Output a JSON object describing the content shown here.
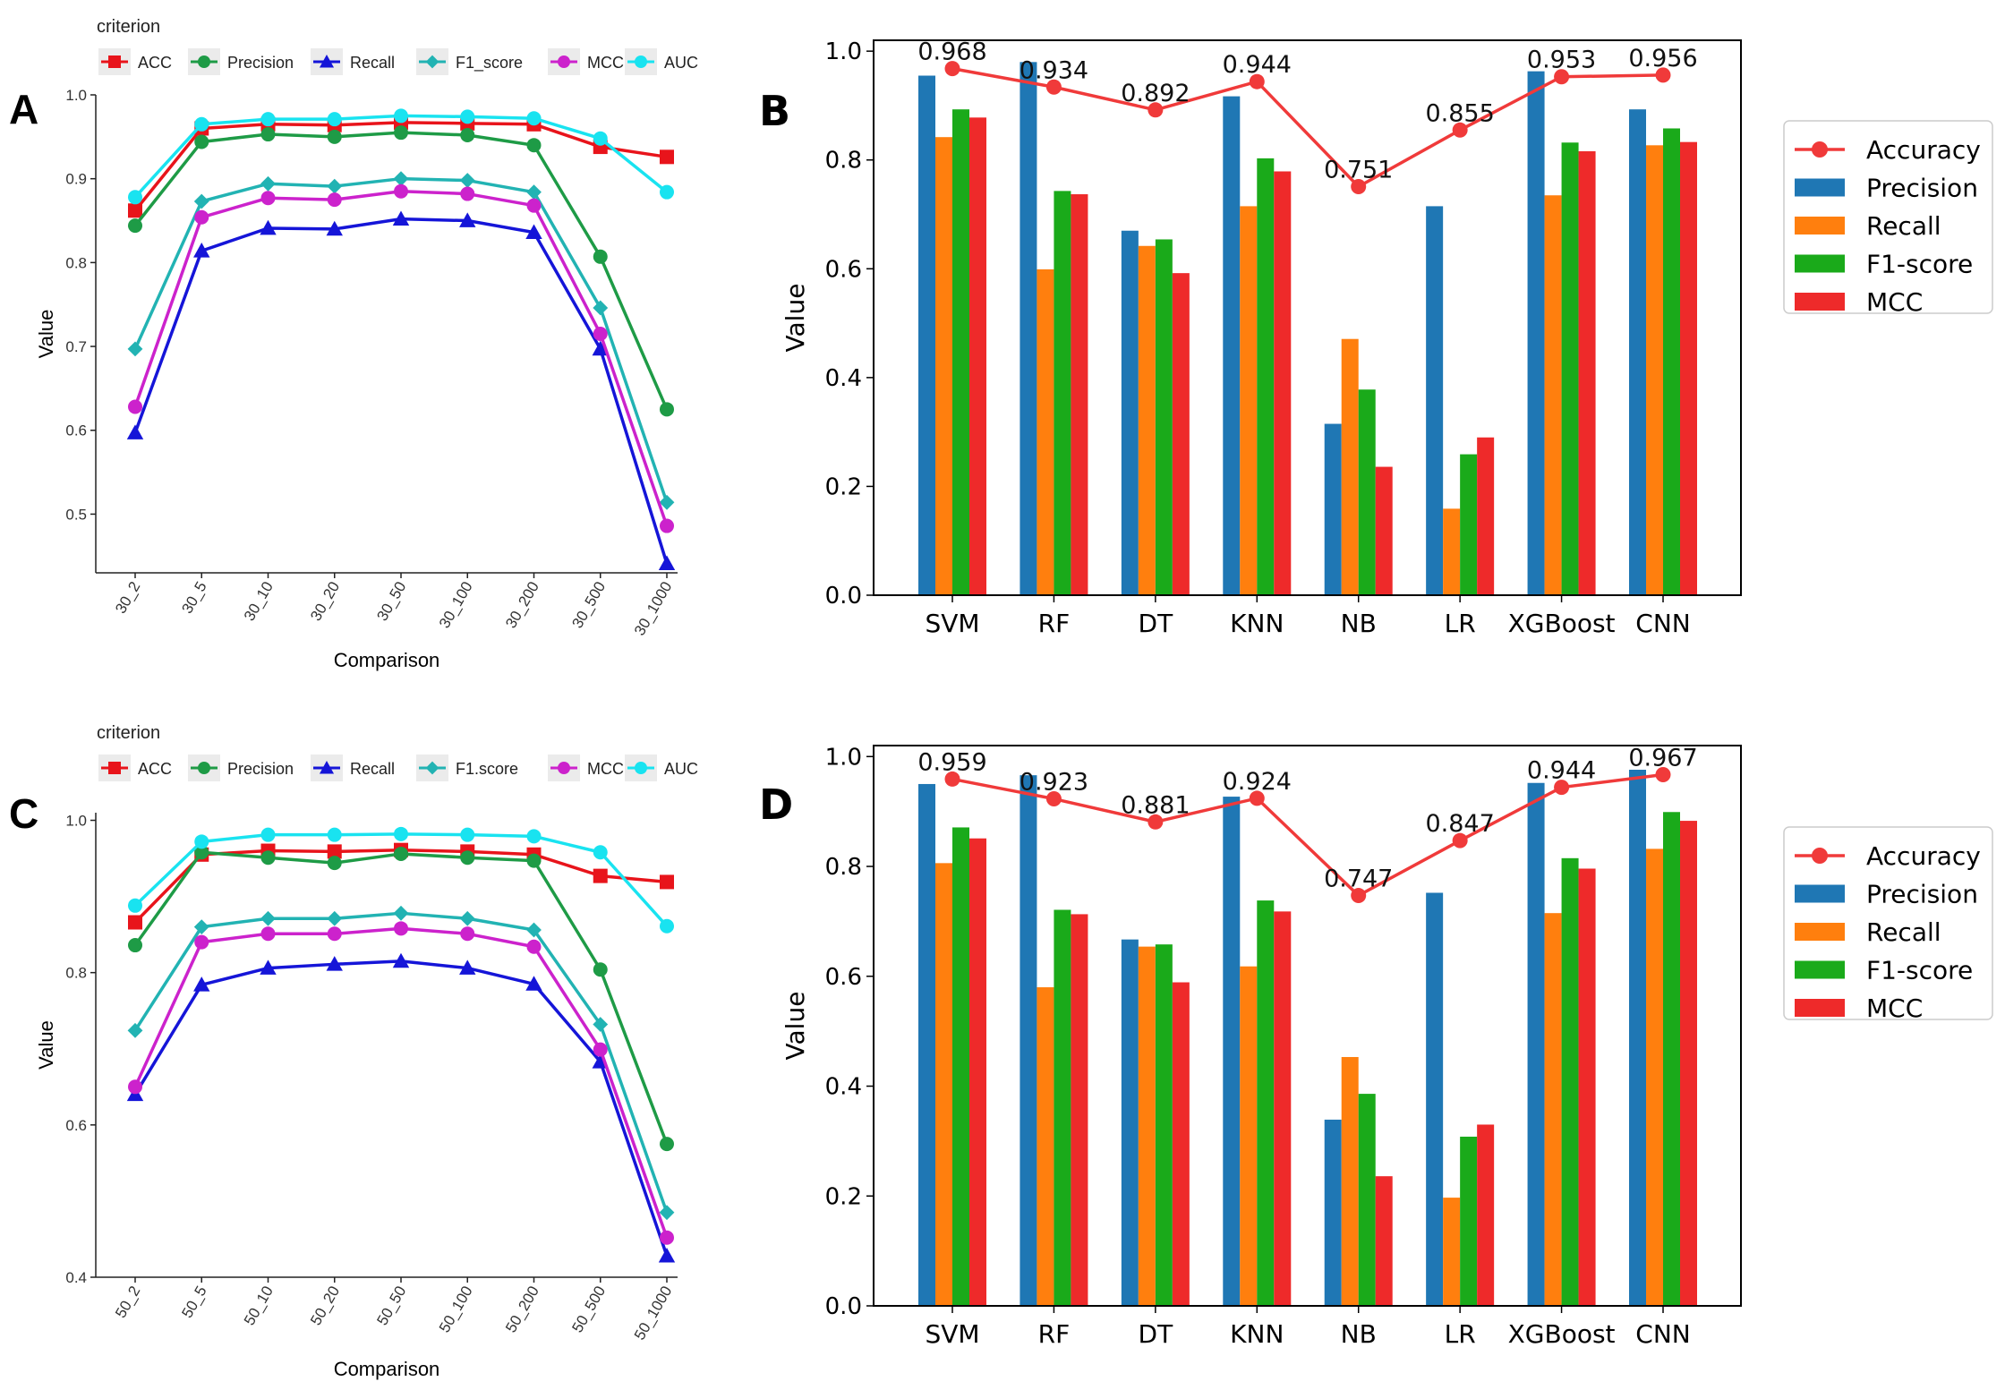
{
  "panels": {
    "A": {
      "letter": "A",
      "chart_data": {
        "type": "line",
        "legend_title": "criterion",
        "xlabel": "Comparison",
        "ylabel": "Value",
        "ylim": [
          0.43,
          1.0
        ],
        "yticks": [
          0.5,
          0.6,
          0.7,
          0.8,
          0.9,
          1.0
        ],
        "ytick_labels": [
          "0.5",
          "0.6",
          "0.7",
          "0.8",
          "0.9",
          "1.0"
        ],
        "categories": [
          "30_2",
          "30_5",
          "30_10",
          "30_20",
          "30_50",
          "30_100",
          "30_200",
          "30_500",
          "30_1000"
        ],
        "series": [
          {
            "name": "ACC",
            "color": "#e8141b",
            "marker": "square",
            "values": [
              0.862,
              0.96,
              0.965,
              0.964,
              0.967,
              0.966,
              0.965,
              0.938,
              0.926
            ]
          },
          {
            "name": "Precision",
            "color": "#1e9b46",
            "marker": "circle",
            "values": [
              0.844,
              0.944,
              0.953,
              0.95,
              0.955,
              0.952,
              0.94,
              0.807,
              0.625
            ]
          },
          {
            "name": "Recall",
            "color": "#1515d8",
            "marker": "triangle",
            "values": [
              0.597,
              0.814,
              0.841,
              0.84,
              0.852,
              0.85,
              0.836,
              0.697,
              0.441
            ]
          },
          {
            "name": "F1_score",
            "color": "#22b3b3",
            "marker": "diamond",
            "values": [
              0.697,
              0.873,
              0.894,
              0.891,
              0.9,
              0.898,
              0.884,
              0.746,
              0.514
            ]
          },
          {
            "name": "MCC",
            "color": "#cc22cc",
            "marker": "circle",
            "values": [
              0.628,
              0.854,
              0.877,
              0.875,
              0.885,
              0.882,
              0.868,
              0.715,
              0.486
            ]
          },
          {
            "name": "AUC",
            "color": "#19e3f0",
            "marker": "circle",
            "values": [
              0.878,
              0.965,
              0.971,
              0.971,
              0.975,
              0.974,
              0.972,
              0.948,
              0.884
            ]
          }
        ]
      }
    },
    "B": {
      "letter": "B",
      "chart_data": {
        "type": "bar",
        "ylabel": "Value",
        "ylim": [
          0.0,
          1.02
        ],
        "yticks": [
          0.0,
          0.2,
          0.4,
          0.6,
          0.8,
          1.0
        ],
        "ytick_labels": [
          "0.0",
          "0.2",
          "0.4",
          "0.6",
          "0.8",
          "1.0"
        ],
        "categories": [
          "SVM",
          "RF",
          "DT",
          "KNN",
          "NB",
          "LR",
          "XGBoost",
          "CNN"
        ],
        "series": [
          {
            "name": "Precision",
            "color": "#1f77b4",
            "values": [
              0.955,
              0.98,
              0.67,
              0.917,
              0.315,
              0.715,
              0.963,
              0.893
            ]
          },
          {
            "name": "Recall",
            "color": "#ff7f0e",
            "values": [
              0.842,
              0.599,
              0.642,
              0.715,
              0.471,
              0.159,
              0.735,
              0.827
            ]
          },
          {
            "name": "F1-score",
            "color": "#1aaa1a",
            "values": [
              0.893,
              0.743,
              0.654,
              0.803,
              0.378,
              0.259,
              0.832,
              0.858
            ]
          },
          {
            "name": "MCC",
            "color": "#ee2a2a",
            "values": [
              0.878,
              0.737,
              0.592,
              0.779,
              0.236,
              0.29,
              0.816,
              0.833
            ]
          }
        ],
        "line": {
          "name": "Accuracy",
          "color": "#f03a3a",
          "values": [
            0.968,
            0.934,
            0.892,
            0.944,
            0.751,
            0.855,
            0.953,
            0.956
          ],
          "labels": [
            "0.968",
            "0.934",
            "0.892",
            "0.944",
            "0.751",
            "0.855",
            "0.953",
            "0.956"
          ]
        },
        "legend_order": [
          "Accuracy",
          "Precision",
          "Recall",
          "F1-score",
          "MCC"
        ]
      }
    },
    "C": {
      "letter": "C",
      "chart_data": {
        "type": "line",
        "legend_title": "criterion",
        "xlabel": "Comparison",
        "ylabel": "Value",
        "ylim": [
          0.4,
          1.01
        ],
        "yticks": [
          0.4,
          0.6,
          0.8,
          1.0
        ],
        "ytick_labels": [
          "0.4",
          "0.6",
          "0.8",
          "1.0"
        ],
        "categories": [
          "50_2",
          "50_5",
          "50_10",
          "50_20",
          "50_50",
          "50_100",
          "50_200",
          "50_500",
          "50_1000"
        ],
        "series": [
          {
            "name": "ACC",
            "color": "#e8141b",
            "marker": "square",
            "values": [
              0.866,
              0.955,
              0.96,
              0.959,
              0.961,
              0.959,
              0.955,
              0.927,
              0.919
            ]
          },
          {
            "name": "Precision",
            "color": "#1e9b46",
            "marker": "circle",
            "values": [
              0.836,
              0.958,
              0.951,
              0.944,
              0.956,
              0.951,
              0.947,
              0.804,
              0.575
            ]
          },
          {
            "name": "Recall",
            "color": "#1515d8",
            "marker": "triangle",
            "values": [
              0.64,
              0.784,
              0.806,
              0.811,
              0.815,
              0.806,
              0.785,
              0.683,
              0.428
            ]
          },
          {
            "name": "F1.score",
            "color": "#22b3b3",
            "marker": "diamond",
            "values": [
              0.724,
              0.86,
              0.871,
              0.871,
              0.878,
              0.871,
              0.856,
              0.732,
              0.485
            ]
          },
          {
            "name": "MCC",
            "color": "#cc22cc",
            "marker": "circle",
            "values": [
              0.65,
              0.84,
              0.851,
              0.851,
              0.858,
              0.851,
              0.834,
              0.699,
              0.452
            ]
          },
          {
            "name": "AUC",
            "color": "#19e3f0",
            "marker": "circle",
            "values": [
              0.888,
              0.972,
              0.981,
              0.981,
              0.982,
              0.981,
              0.979,
              0.958,
              0.861
            ]
          }
        ]
      }
    },
    "D": {
      "letter": "D",
      "chart_data": {
        "type": "bar",
        "ylabel": "Value",
        "ylim": [
          0.0,
          1.02
        ],
        "yticks": [
          0.0,
          0.2,
          0.4,
          0.6,
          0.8,
          1.0
        ],
        "ytick_labels": [
          "0.0",
          "0.2",
          "0.4",
          "0.6",
          "0.8",
          "1.0"
        ],
        "categories": [
          "SVM",
          "RF",
          "DT",
          "KNN",
          "NB",
          "LR",
          "XGBoost",
          "CNN"
        ],
        "series": [
          {
            "name": "Precision",
            "color": "#1f77b4",
            "values": [
              0.95,
              0.966,
              0.667,
              0.927,
              0.339,
              0.752,
              0.952,
              0.976
            ]
          },
          {
            "name": "Recall",
            "color": "#ff7f0e",
            "values": [
              0.806,
              0.58,
              0.654,
              0.618,
              0.453,
              0.197,
              0.715,
              0.832
            ]
          },
          {
            "name": "F1-score",
            "color": "#1aaa1a",
            "values": [
              0.871,
              0.721,
              0.658,
              0.738,
              0.386,
              0.308,
              0.815,
              0.899
            ]
          },
          {
            "name": "MCC",
            "color": "#ee2a2a",
            "values": [
              0.851,
              0.713,
              0.589,
              0.718,
              0.236,
              0.33,
              0.796,
              0.883
            ]
          }
        ],
        "line": {
          "name": "Accuracy",
          "color": "#f03a3a",
          "values": [
            0.959,
            0.923,
            0.881,
            0.924,
            0.747,
            0.847,
            0.944,
            0.967
          ],
          "labels": [
            "0.959",
            "0.923",
            "0.881",
            "0.924",
            "0.747",
            "0.847",
            "0.944",
            "0.967"
          ]
        },
        "legend_order": [
          "Accuracy",
          "Precision",
          "Recall",
          "F1-score",
          "MCC"
        ]
      }
    }
  }
}
